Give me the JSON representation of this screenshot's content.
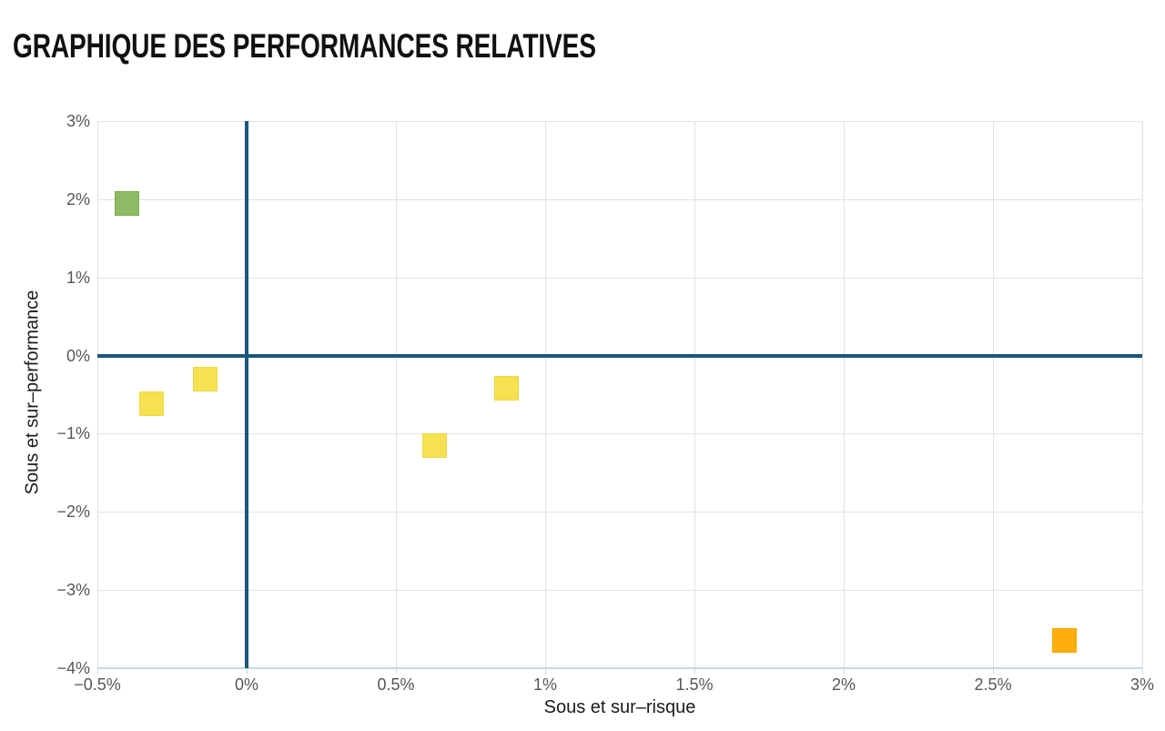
{
  "title": "GRAPHIQUE DES PERFORMANCES RELATIVES",
  "chart_data": {
    "type": "scatter",
    "marker_shape": "square",
    "title": "GRAPHIQUE DES PERFORMANCES RELATIVES",
    "xlabel": "Sous et sur–risque",
    "ylabel": "Sous et sur–performance",
    "xlim": [
      -0.5,
      3
    ],
    "ylim": [
      -4,
      3
    ],
    "grid": true,
    "legend": false,
    "zero_lines": true,
    "x_ticks": [
      {
        "value": -0.5,
        "label": "−0.5%"
      },
      {
        "value": 0,
        "label": "0%"
      },
      {
        "value": 0.5,
        "label": "0.5%"
      },
      {
        "value": 1,
        "label": "1%"
      },
      {
        "value": 1.5,
        "label": "1.5%"
      },
      {
        "value": 2,
        "label": "2%"
      },
      {
        "value": 2.5,
        "label": "2.5%"
      },
      {
        "value": 3,
        "label": "3%"
      }
    ],
    "y_ticks": [
      {
        "value": 3,
        "label": "3%"
      },
      {
        "value": 2,
        "label": "2%"
      },
      {
        "value": 1,
        "label": "1%"
      },
      {
        "value": 0,
        "label": "0%"
      },
      {
        "value": -1,
        "label": "−1%"
      },
      {
        "value": -2,
        "label": "−2%"
      },
      {
        "value": -3,
        "label": "−3%"
      },
      {
        "value": -4,
        "label": "−4%"
      }
    ],
    "points": [
      {
        "x": -0.4,
        "y": 1.95,
        "color": "#8dbb64",
        "border": "#7dac55",
        "name": "point-green"
      },
      {
        "x": -0.32,
        "y": -0.62,
        "color": "#f6e150",
        "border": "#eed843",
        "name": "point-yellow-1"
      },
      {
        "x": -0.14,
        "y": -0.3,
        "color": "#f6e150",
        "border": "#eed843",
        "name": "point-yellow-2"
      },
      {
        "x": 0.63,
        "y": -1.15,
        "color": "#f6e150",
        "border": "#eed843",
        "name": "point-yellow-3"
      },
      {
        "x": 0.87,
        "y": -0.42,
        "color": "#f6e150",
        "border": "#eed843",
        "name": "point-yellow-4"
      },
      {
        "x": 2.74,
        "y": -3.64,
        "color": "#ffae0c",
        "border": "#f2a303",
        "name": "point-orange"
      }
    ]
  },
  "colors": {
    "grid": "#e2e2e2",
    "zero_line": "#1a567a",
    "axis_baseline": "#c9d8e6",
    "tick_text": "#55565a",
    "axis_title_text": "#1b1b1b",
    "title_text": "#111111"
  }
}
